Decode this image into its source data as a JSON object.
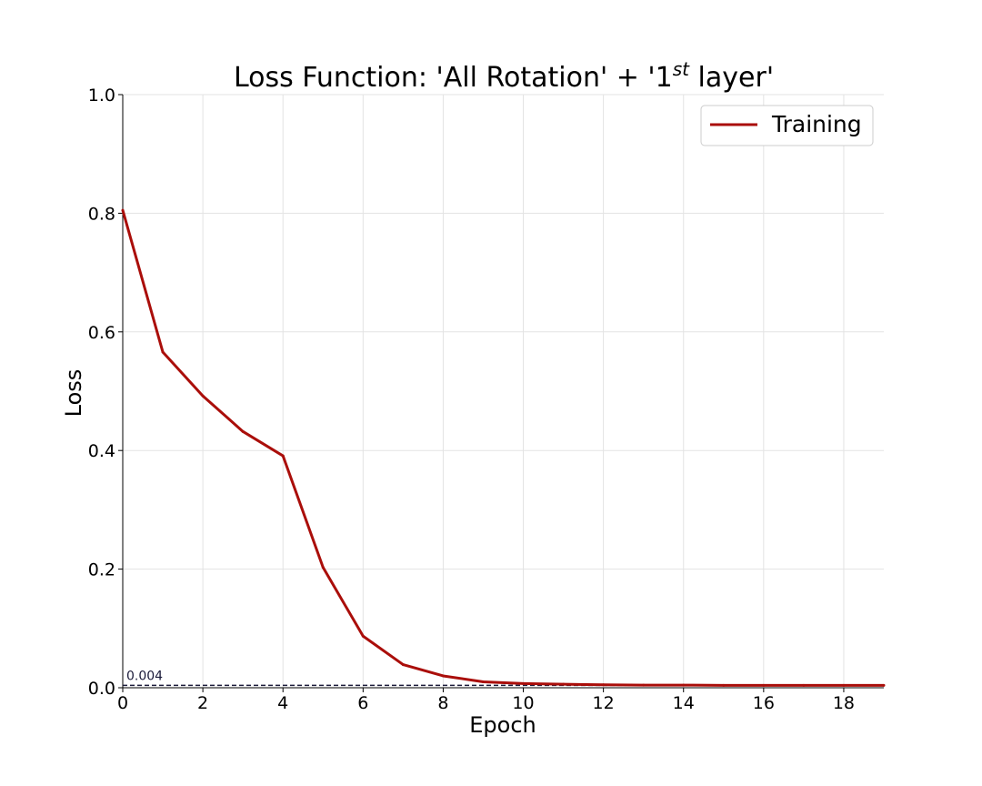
{
  "chart_data": {
    "type": "line",
    "title": "Loss Function: 'All Rotation' + '1",
    "title_sup": "st",
    "title_suffix": " layer'",
    "xlabel": "Epoch",
    "ylabel": "Loss",
    "xlim": [
      0,
      19
    ],
    "ylim": [
      0,
      1.0
    ],
    "xticks": [
      0,
      2,
      4,
      6,
      8,
      10,
      12,
      14,
      16,
      18
    ],
    "yticks": [
      "0.0",
      "0.2",
      "0.4",
      "0.6",
      "0.8",
      "1.0"
    ],
    "grid": true,
    "legend_position": "top-right",
    "series": [
      {
        "name": "Training",
        "color": "#aa0e0a",
        "x": [
          0,
          1,
          2,
          3,
          4,
          5,
          6,
          7,
          8,
          9,
          10,
          11,
          12,
          13,
          14,
          15,
          16,
          17,
          18,
          19
        ],
        "values": [
          0.805,
          0.566,
          0.492,
          0.432,
          0.391,
          0.203,
          0.087,
          0.039,
          0.02,
          0.01,
          0.007,
          0.006,
          0.005,
          0.0045,
          0.0045,
          0.004,
          0.004,
          0.004,
          0.004,
          0.004
        ]
      }
    ],
    "reference_line": {
      "value": 0.004,
      "label": "0.004",
      "color": "#1b1b3a",
      "style": "dashed"
    }
  }
}
